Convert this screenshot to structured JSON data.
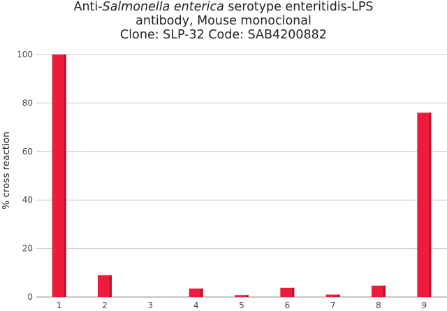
{
  "chart_data": {
    "type": "bar",
    "title": {
      "line1_prefix": "Anti-",
      "line1_italic": "Salmonella enterica",
      "line1_suffix": " serotype enteritidis-LPS",
      "line2": "antibody, Mouse monoclonal",
      "line3": "Clone: SLP-32   Code: SAB4200882"
    },
    "xlabel": "",
    "ylabel": "% cross reaction",
    "categories": [
      "1",
      "2",
      "3",
      "4",
      "5",
      "6",
      "7",
      "8",
      "9"
    ],
    "values": [
      100,
      9,
      0,
      3.5,
      0.8,
      3.8,
      1,
      4.7,
      76
    ],
    "ylim": [
      0,
      100
    ],
    "yticks": [
      0,
      20,
      40,
      60,
      80,
      100
    ],
    "grid": true,
    "legend": "none",
    "colors": {
      "bar": "#ee1c3a",
      "bar_shade": "#b4122b",
      "grid": "#c8c8c8",
      "axis": "#888888"
    }
  }
}
